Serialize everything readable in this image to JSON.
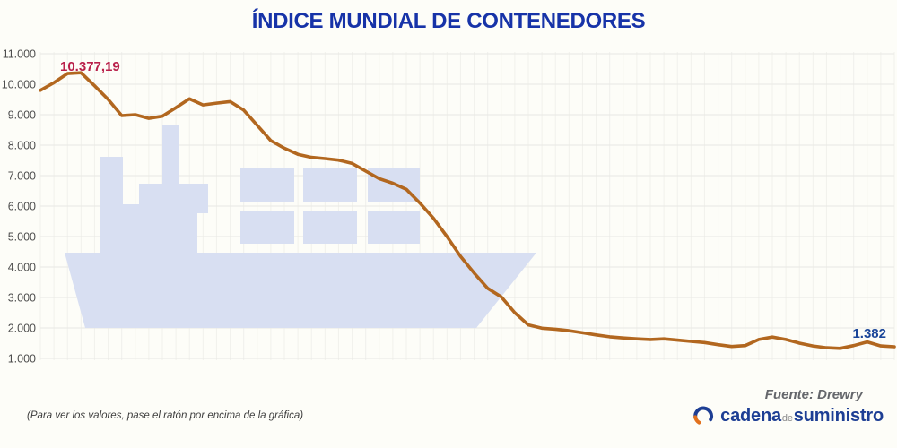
{
  "title": "ÍNDICE MUNDIAL DE CONTENEDORES",
  "chart_data": {
    "type": "line",
    "title": "ÍNDICE MUNDIAL DE CONTENEDORES",
    "xlabel": "",
    "ylabel": "",
    "ylim": [
      1000,
      11000
    ],
    "grid": true,
    "legend_position": "none",
    "ytick_labels": [
      "11.000",
      "10.000",
      "9.000",
      "8.000",
      "7.000",
      "6.000",
      "5.000",
      "4.000",
      "3.000",
      "2.000",
      "1.000"
    ],
    "yticks": [
      11000,
      10000,
      9000,
      8000,
      7000,
      6000,
      5000,
      4000,
      3000,
      2000,
      1000
    ],
    "series": [
      {
        "name": "Índice mundial de contenedores",
        "values": [
          9800,
          10050,
          10350,
          10377,
          9950,
          9500,
          8970,
          9000,
          8880,
          8950,
          9230,
          9520,
          9320,
          9380,
          9430,
          9150,
          8650,
          8150,
          7900,
          7700,
          7600,
          7560,
          7510,
          7400,
          7150,
          6900,
          6750,
          6550,
          6100,
          5600,
          5000,
          4350,
          3800,
          3300,
          3020,
          2500,
          2100,
          1990,
          1960,
          1910,
          1840,
          1770,
          1710,
          1670,
          1640,
          1620,
          1640,
          1600,
          1560,
          1520,
          1450,
          1390,
          1420,
          1620,
          1700,
          1620,
          1500,
          1410,
          1350,
          1330,
          1420,
          1540,
          1410,
          1382
        ]
      }
    ],
    "annotations": {
      "peak": {
        "text": "10.377,19",
        "value": 10377.19
      },
      "last": {
        "text": "1.382",
        "value": 1382
      }
    },
    "watermark": "container-ship"
  },
  "footer": {
    "source": "Fuente: Drewry",
    "note": "(Para ver los valores, pase el ratón por encima de la gráfica)",
    "logo": {
      "word1": "cadena",
      "word2": "de",
      "word3": "suministro"
    }
  },
  "colors": {
    "title_blue": "#1733a8",
    "line": "#b2671f",
    "peak_label": "#b9204a",
    "last_label": "#1b4699",
    "watermark_ship": "#d8dff2",
    "brand_blue": "#1d3e94",
    "brand_orange": "#e2711d"
  }
}
